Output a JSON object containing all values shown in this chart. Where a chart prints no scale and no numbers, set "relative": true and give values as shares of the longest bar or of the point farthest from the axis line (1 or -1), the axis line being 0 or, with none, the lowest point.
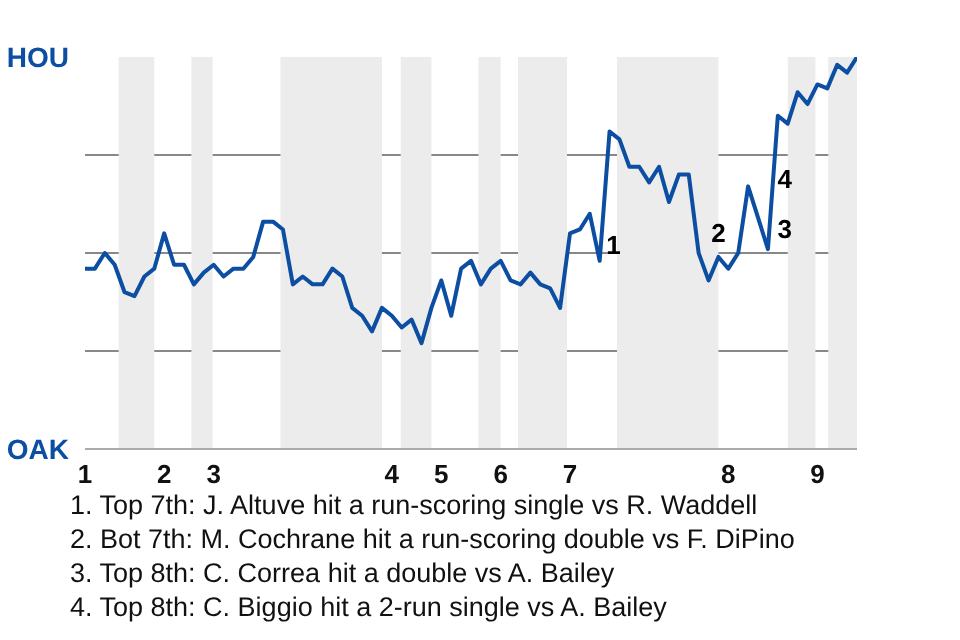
{
  "chart_data": {
    "type": "line",
    "relative": true,
    "categories": [
      "1",
      null,
      null,
      null,
      null,
      null,
      null,
      null,
      "2",
      null,
      null,
      null,
      null,
      "3",
      null,
      null,
      null,
      null,
      null,
      null,
      null,
      null,
      null,
      null,
      null,
      null,
      null,
      null,
      null,
      null,
      null,
      "4",
      null,
      null,
      null,
      null,
      "5",
      null,
      null,
      null,
      null,
      null,
      "6",
      null,
      null,
      null,
      null,
      null,
      null,
      "7",
      null,
      null,
      null,
      null,
      null,
      null,
      null,
      null,
      null,
      null,
      null,
      null,
      null,
      null,
      null,
      "8",
      null,
      null,
      null,
      null,
      null,
      null,
      null,
      null,
      "9",
      null,
      null,
      null,
      null
    ],
    "values": [
      0.46,
      0.46,
      0.5,
      0.47,
      0.4,
      0.39,
      0.44,
      0.46,
      0.55,
      0.47,
      0.47,
      0.42,
      0.45,
      0.47,
      0.44,
      0.46,
      0.46,
      0.49,
      0.58,
      0.58,
      0.56,
      0.42,
      0.44,
      0.42,
      0.42,
      0.46,
      0.44,
      0.36,
      0.34,
      0.3,
      0.36,
      0.34,
      0.31,
      0.33,
      0.27,
      0.36,
      0.43,
      0.34,
      0.46,
      0.48,
      0.42,
      0.46,
      0.48,
      0.43,
      0.42,
      0.45,
      0.42,
      0.41,
      0.36,
      0.55,
      0.56,
      0.6,
      0.48,
      0.81,
      0.79,
      0.72,
      0.72,
      0.68,
      0.72,
      0.63,
      0.7,
      0.7,
      0.5,
      0.43,
      0.49,
      0.46,
      0.5,
      0.67,
      0.59,
      0.51,
      0.85,
      0.83,
      0.91,
      0.88,
      0.93,
      0.92,
      0.98,
      0.96,
      1
    ],
    "color": "#0b4ea2",
    "grid": "y",
    "annotations": [
      "HOU",
      "OAK",
      "1",
      "2",
      "3",
      "4",
      "1. Top 7th: J. Altuve hit a run-scoring single vs R. Waddell",
      "2. Bot 7th: M. Cochrane hit a run-scoring double vs F. DiPino",
      "3. Top 8th: C. Correa hit a double vs A. Bailey",
      "4. Top 8th: C. Biggio hit a 2-run single vs A. Bailey"
    ]
  }
}
